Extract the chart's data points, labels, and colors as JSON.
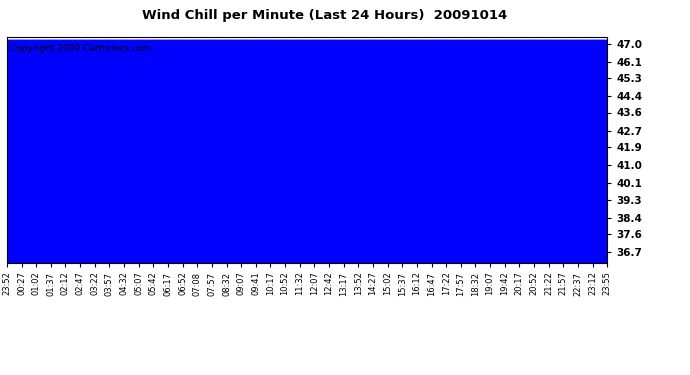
{
  "title": "Wind Chill per Minute (Last 24 Hours)  20091014",
  "copyright_text": "Copyright 2009 Cartronics.com",
  "line_color": "#0000FF",
  "fill_color": "#0000FF",
  "background_color": "#FFFFFF",
  "plot_bg_color": "#FFFFFF",
  "grid_color": "#AAAAAA",
  "yticks": [
    36.7,
    37.6,
    38.4,
    39.3,
    40.1,
    41.0,
    41.9,
    42.7,
    43.6,
    44.4,
    45.3,
    46.1,
    47.0
  ],
  "ylim": [
    36.2,
    47.3
  ],
  "xtick_labels": [
    "23:52",
    "00:27",
    "01:02",
    "01:37",
    "02:12",
    "02:47",
    "03:22",
    "03:57",
    "04:32",
    "05:07",
    "05:42",
    "06:17",
    "06:52",
    "07:08",
    "07:57",
    "08:32",
    "09:07",
    "09:41",
    "10:17",
    "10:52",
    "11:32",
    "12:07",
    "12:42",
    "13:17",
    "13:52",
    "14:27",
    "15:02",
    "15:37",
    "16:12",
    "16:47",
    "17:22",
    "17:57",
    "18:32",
    "19:07",
    "19:42",
    "20:17",
    "20:52",
    "21:22",
    "21:57",
    "22:37",
    "23:12",
    "23:55"
  ]
}
